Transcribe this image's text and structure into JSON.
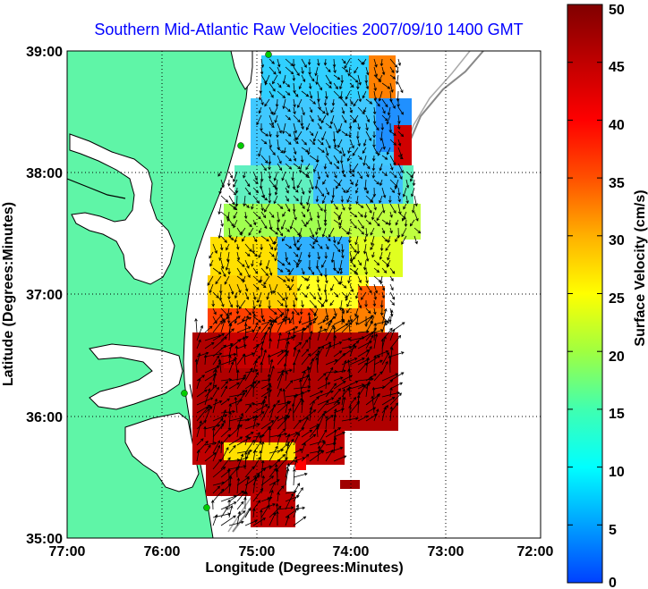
{
  "title": "Southern Mid-Atlantic Raw Velocities 2007/09/10 1400 GMT",
  "axes": {
    "xlabel": "Longitude (Degrees:Minutes)",
    "ylabel": "Latitude (Degrees:Minutes)",
    "x_ticks": [
      "77:00",
      "76:00",
      "75:00",
      "74:00",
      "73:00",
      "72:00"
    ],
    "y_ticks": [
      "39:00",
      "38:00",
      "37:00",
      "36:00",
      "35:00"
    ],
    "xlim": [
      -77,
      -72
    ],
    "ylim": [
      35,
      39
    ],
    "grid": "dotted"
  },
  "colorbar": {
    "label": "Surface Velocity (cm/s)",
    "ticks": [
      "0",
      "5",
      "10",
      "15",
      "20",
      "25",
      "30",
      "35",
      "40",
      "45",
      "50"
    ],
    "range": [
      0,
      50
    ],
    "colormap": [
      "#0040ff",
      "#00a0ff",
      "#00ffff",
      "#40ffb0",
      "#a0ff40",
      "#ffff00",
      "#ffb000",
      "#ff5000",
      "#ff0000",
      "#c00000",
      "#800000"
    ]
  },
  "colors": {
    "land": "#5ff5a7",
    "coastline": "#000000",
    "water": "#ffffff",
    "grid": "#000000",
    "bathymetry": "#888888",
    "station": "#00cc00",
    "arrow": "#000000",
    "title": "#0000ff"
  }
}
